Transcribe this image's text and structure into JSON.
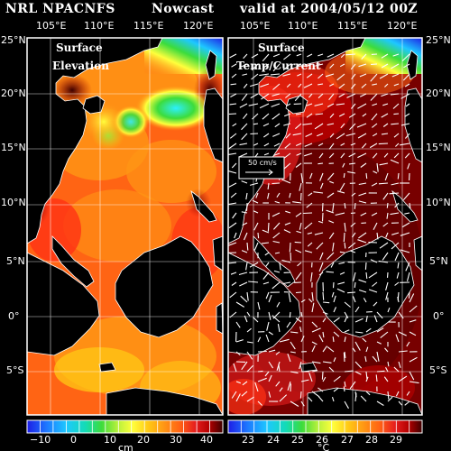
{
  "header": {
    "product": "NRL NPACNFS",
    "kind": "Nowcast",
    "valid": "valid at 2004/05/12 00Z"
  },
  "axes": {
    "lon_ticks": [
      "105°E",
      "110°E",
      "115°E",
      "120°E"
    ],
    "lat_ticks": [
      "25°N",
      "20°N",
      "15°N",
      "10°N",
      "5°N",
      "0°",
      "5°S"
    ]
  },
  "left_panel": {
    "title_line1": "Surface",
    "title_line2": "Elevation",
    "colorbar_ticks": [
      "−10",
      "0",
      "10",
      "20",
      "30",
      "40"
    ],
    "colorbar_unit": "cm"
  },
  "right_panel": {
    "title_line1": "Surface",
    "title_line2": "Temp/Current",
    "scale_label": "50 cm/s",
    "colorbar_ticks": [
      "23",
      "24",
      "25",
      "26",
      "27",
      "28",
      "29"
    ],
    "colorbar_unit": "°C"
  },
  "colors": {
    "elevation_scale": [
      "#1e1ee6",
      "#1e78ff",
      "#1ec8ff",
      "#14dcb4",
      "#3cdc3c",
      "#b4f03c",
      "#ffff3c",
      "#ffc814",
      "#ff9614",
      "#ff6414",
      "#ff3214",
      "#e61e1e",
      "#b40000",
      "#780000",
      "#3c0000"
    ],
    "temp_scale": [
      "#1e1ee6",
      "#1e78ff",
      "#1ec8ff",
      "#14dcb4",
      "#3cdc3c",
      "#b4f03c",
      "#ffff3c",
      "#ffc814",
      "#ff9614",
      "#ff6414",
      "#ff3214",
      "#e61e1e",
      "#b40000",
      "#780000",
      "#3c0000"
    ],
    "land": "#000000",
    "grid": "#ffffff"
  }
}
